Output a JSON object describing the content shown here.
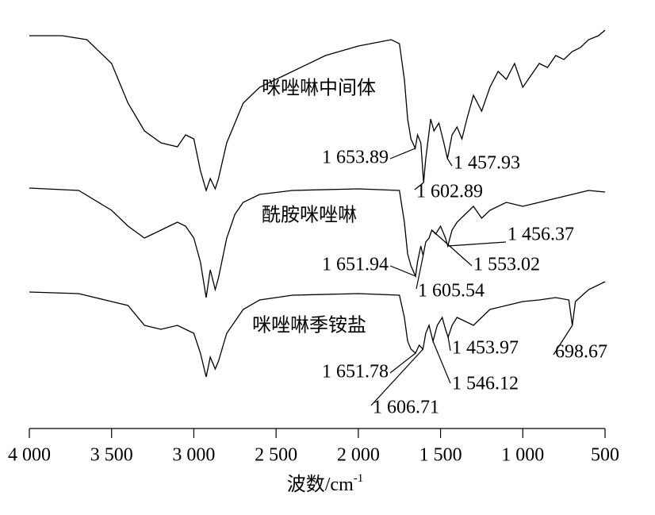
{
  "chart_data": {
    "type": "line",
    "xlabel": {
      "text": "波数/cm",
      "sup": "-1"
    },
    "xlim": [
      4000,
      500
    ],
    "ylim": [
      0,
      510
    ],
    "xticks": [
      {
        "value": 4000,
        "label": "4 000"
      },
      {
        "value": 3500,
        "label": "3 500"
      },
      {
        "value": 3000,
        "label": "3 000"
      },
      {
        "value": 2500,
        "label": "2 500"
      },
      {
        "value": 2000,
        "label": "2 000"
      },
      {
        "value": 1500,
        "label": "1 500"
      },
      {
        "value": 1000,
        "label": "1 000"
      },
      500
    ],
    "series": [
      {
        "name": "咪唑啉中间体",
        "color": "#000000",
        "x": [
          4000,
          3800,
          3650,
          3500,
          3400,
          3300,
          3200,
          3100,
          3050,
          3000,
          2960,
          2925,
          2900,
          2870,
          2850,
          2800,
          2700,
          2600,
          2400,
          2200,
          2000,
          1800,
          1750,
          1720,
          1700,
          1680,
          1654,
          1640,
          1620,
          1603,
          1590,
          1560,
          1540,
          1510,
          1480,
          1458,
          1430,
          1400,
          1370,
          1340,
          1300,
          1250,
          1200,
          1150,
          1100,
          1050,
          1000,
          950,
          900,
          850,
          800,
          750,
          700,
          650,
          600,
          540,
          500
        ],
        "values": [
          495,
          495,
          490,
          460,
          410,
          375,
          360,
          355,
          370,
          365,
          325,
          300,
          315,
          302,
          315,
          360,
          410,
          430,
          450,
          470,
          482,
          490,
          485,
          440,
          390,
          365,
          353,
          370,
          360,
          310,
          340,
          390,
          375,
          385,
          360,
          340,
          370,
          380,
          365,
          390,
          420,
          400,
          430,
          450,
          440,
          460,
          430,
          445,
          460,
          455,
          470,
          465,
          475,
          480,
          490,
          495,
          502
        ],
        "annotations": [
          {
            "value": 1653.89,
            "label": "1 653.89"
          },
          {
            "value": 1602.89,
            "label": "1 602.89"
          },
          {
            "value": 1457.93,
            "label": "1 457.93"
          }
        ]
      },
      {
        "name": "酰胺咪唑啉",
        "color": "#000000",
        "x": [
          4000,
          3700,
          3500,
          3400,
          3300,
          3200,
          3100,
          3050,
          3000,
          2960,
          2925,
          2900,
          2870,
          2850,
          2800,
          2750,
          2700,
          2600,
          2400,
          2000,
          1750,
          1720,
          1700,
          1680,
          1652,
          1640,
          1620,
          1606,
          1590,
          1570,
          1553,
          1530,
          1500,
          1470,
          1456,
          1430,
          1400,
          1350,
          1300,
          1250,
          1200,
          1100,
          1000,
          900,
          800,
          700,
          600,
          500
        ],
        "values": [
          303,
          300,
          275,
          255,
          240,
          250,
          260,
          255,
          240,
          210,
          165,
          200,
          175,
          190,
          240,
          270,
          285,
          295,
          300,
          302,
          300,
          260,
          220,
          205,
          192,
          210,
          230,
          218,
          235,
          240,
          250,
          245,
          255,
          240,
          230,
          250,
          260,
          270,
          280,
          265,
          275,
          285,
          280,
          285,
          290,
          295,
          300,
          298
        ],
        "annotations": [
          {
            "value": 1651.94,
            "label": "1 651.94"
          },
          {
            "value": 1605.54,
            "label": "1 605.54"
          },
          {
            "value": 1553.02,
            "label": "1 553.02"
          },
          {
            "value": 1456.37,
            "label": "1 456.37"
          }
        ]
      },
      {
        "name": "咪唑啉季铵盐",
        "color": "#000000",
        "x": [
          4000,
          3700,
          3500,
          3400,
          3300,
          3200,
          3100,
          3000,
          2960,
          2925,
          2900,
          2870,
          2850,
          2800,
          2700,
          2600,
          2400,
          2000,
          1750,
          1720,
          1700,
          1680,
          1652,
          1630,
          1607,
          1590,
          1570,
          1546,
          1520,
          1490,
          1470,
          1454,
          1430,
          1400,
          1350,
          1300,
          1250,
          1200,
          1100,
          1000,
          900,
          800,
          720,
          699,
          680,
          600,
          500
        ],
        "values": [
          172,
          170,
          160,
          155,
          130,
          125,
          130,
          120,
          95,
          65,
          90,
          75,
          85,
          120,
          150,
          162,
          168,
          170,
          168,
          140,
          110,
          100,
          95,
          105,
          100,
          120,
          130,
          110,
          130,
          140,
          125,
          115,
          130,
          140,
          135,
          130,
          140,
          150,
          155,
          160,
          162,
          165,
          162,
          130,
          160,
          175,
          185
        ],
        "annotations": [
          {
            "value": 1651.78,
            "label": "1 651.78"
          },
          {
            "value": 1606.71,
            "label": "1 606.71"
          },
          {
            "value": 1546.12,
            "label": "1 546.12"
          },
          {
            "value": 1453.97,
            "label": "1 453.97"
          },
          {
            "value": 698.67,
            "label": "698.67"
          }
        ]
      }
    ]
  }
}
